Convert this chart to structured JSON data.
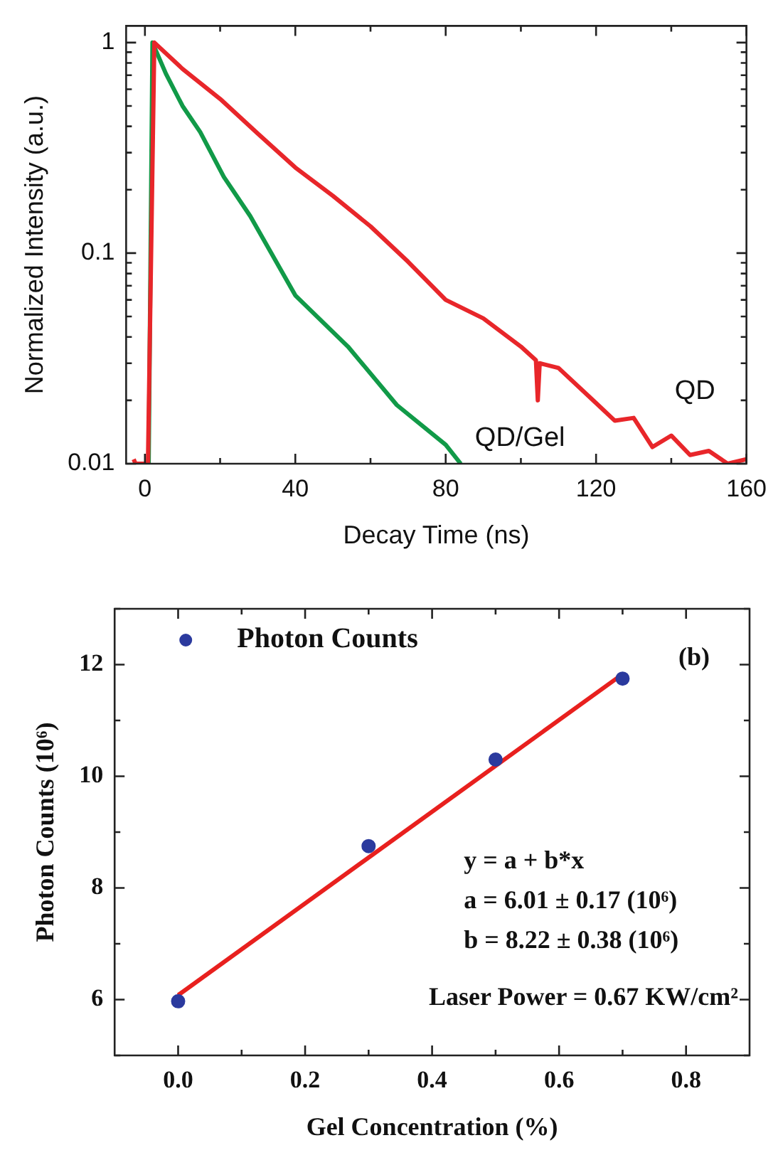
{
  "chart_data": [
    {
      "type": "line",
      "xlabel": "Decay Time (ns)",
      "ylabel": "Normalized Intensity (a.u.)",
      "log": true,
      "xlim": [
        -5,
        160
      ],
      "ylim": [
        0.01,
        1.2
      ],
      "xticks": [
        0,
        {
          "value": 20,
          "label": null
        },
        40,
        {
          "value": 60,
          "label": null
        },
        80,
        {
          "value": 100,
          "label": null
        },
        120,
        {
          "value": 140,
          "label": null
        },
        160
      ],
      "yticks": [
        0.01,
        {
          "value": 0.02,
          "label": null
        },
        {
          "value": 0.03,
          "label": null
        },
        {
          "value": 0.04,
          "label": null
        },
        {
          "value": 0.05,
          "label": null
        },
        {
          "value": 0.06,
          "label": null
        },
        {
          "value": 0.07,
          "label": null
        },
        {
          "value": 0.08,
          "label": null
        },
        {
          "value": 0.09,
          "label": null
        },
        0.1,
        {
          "value": 0.2,
          "label": null
        },
        {
          "value": 0.3,
          "label": null
        },
        {
          "value": 0.4,
          "label": null
        },
        {
          "value": 0.5,
          "label": null
        },
        {
          "value": 0.6,
          "label": null
        },
        {
          "value": 0.7,
          "label": null
        },
        {
          "value": 0.8,
          "label": null
        },
        {
          "value": 0.9,
          "label": null
        },
        1
      ],
      "series": [
        {
          "name": "QD",
          "color": "#e8262a",
          "x": [
            -3,
            -2.5,
            0.8,
            2.5,
            10,
            20,
            30,
            40,
            50,
            60,
            70,
            80,
            90,
            100,
            104,
            104.5,
            105,
            110,
            120,
            125,
            130,
            135,
            140,
            145,
            150,
            155,
            160
          ],
          "values": [
            0.0105,
            0.01,
            0.01,
            1.0,
            0.75,
            0.54,
            0.37,
            0.255,
            0.187,
            0.134,
            0.091,
            0.06,
            0.049,
            0.036,
            0.031,
            0.02,
            0.03,
            0.0285,
            0.0194,
            0.016,
            0.0165,
            0.012,
            0.0136,
            0.011,
            0.0115,
            0.01,
            0.0105
          ]
        },
        {
          "name": "QD/Gel",
          "color": "#119a48",
          "x": [
            1,
            2,
            5.6,
            10,
            14.7,
            21,
            28,
            40,
            54,
            67,
            80,
            84
          ],
          "values": [
            0.01,
            1.0,
            0.71,
            0.5,
            0.376,
            0.23,
            0.15,
            0.063,
            0.036,
            0.019,
            0.0123,
            0.01
          ]
        }
      ]
    },
    {
      "type": "scatter",
      "xlabel": "Gel Concentration (%)",
      "ylabel": "Photon Counts (10⁶)",
      "legend": "top left",
      "xlim": [
        -0.1,
        0.9
      ],
      "ylim": [
        5,
        13
      ],
      "xticks": [
        {
          "value": 0,
          "label": "0.0"
        },
        {
          "value": 0.1,
          "label": null
        },
        0.2,
        {
          "value": 0.3,
          "label": null
        },
        0.4,
        {
          "value": 0.5,
          "label": null
        },
        0.6,
        {
          "value": 0.7,
          "label": null
        },
        0.8
      ],
      "yticks": [
        {
          "value": 5,
          "label": null
        },
        6,
        {
          "value": 7,
          "label": null
        },
        8,
        {
          "value": 9,
          "label": null
        },
        10,
        {
          "value": 11,
          "label": null
        },
        12,
        {
          "value": 13,
          "label": null
        }
      ],
      "series": [
        {
          "name": "Photon Counts",
          "color": "#2b3a9e",
          "marker": "circle",
          "x": [
            0,
            0.3,
            0.5,
            0.7
          ],
          "values": [
            5.97,
            8.75,
            10.3,
            11.75
          ]
        },
        {
          "type": "line",
          "color": "#e8201e",
          "marker": "none",
          "x": [
            0,
            0.7
          ],
          "values": [
            6.08,
            11.83
          ]
        }
      ],
      "annotations": [
        "(b)",
        "y = a + b*x",
        "a = 6.01 ± 0.17 (10⁶)",
        "b = 8.22 ± 0.38 (10⁶)",
        "Laser Power = 0.67 KW/cm²"
      ]
    }
  ]
}
